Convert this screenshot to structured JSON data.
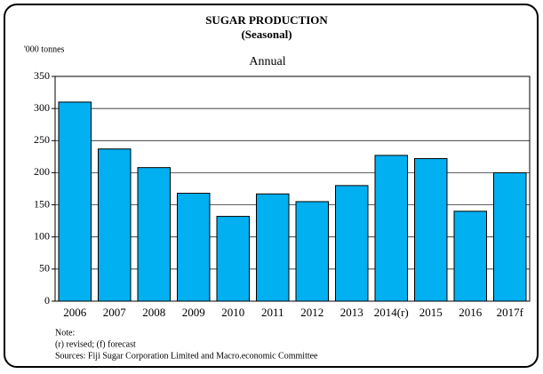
{
  "chart_data": {
    "type": "bar",
    "title": "SUGAR PRODUCTION",
    "subtitle": "(Seasonal)",
    "y_label": "'000 tonnes",
    "annotation": "Annual",
    "categories": [
      "2006",
      "2007",
      "2008",
      "2009",
      "2010",
      "2011",
      "2012",
      "2013",
      "2014(r)",
      "2015",
      "2016",
      "2017f"
    ],
    "values": [
      310,
      237,
      208,
      168,
      132,
      167,
      155,
      180,
      227,
      222,
      140,
      200
    ],
    "color": "#00b0f0",
    "ylim": [
      0,
      350
    ],
    "yticks": [
      0,
      50,
      100,
      150,
      200,
      250,
      300,
      350
    ],
    "grid": true,
    "notes": [
      "Note:",
      "(r) revised; (f) forecast",
      "Sources:  Fiji Sugar Corporation Limited and Macro.economic Committee"
    ]
  }
}
